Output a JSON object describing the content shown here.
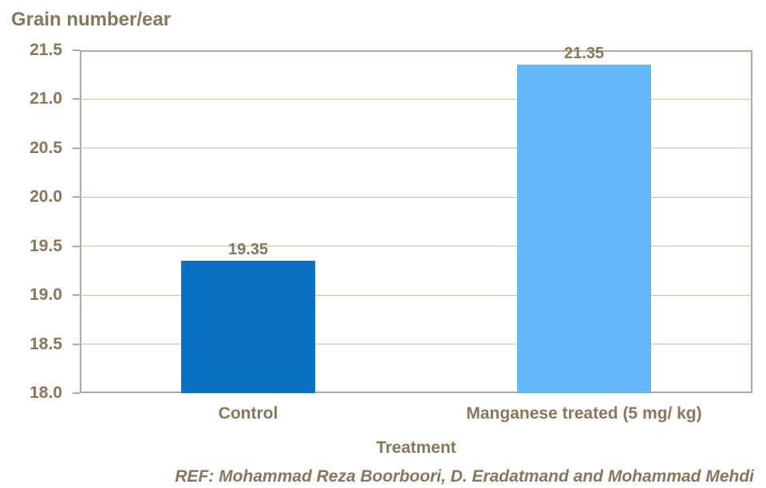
{
  "chart_data": {
    "type": "bar",
    "title": "Grain number/ear",
    "xlabel": "Treatment",
    "ylabel": "Grain number/ear",
    "categories": [
      "Control",
      "Manganese treated (5 mg/ kg)"
    ],
    "values": [
      19.35,
      21.35
    ],
    "data_labels": [
      "19.35",
      "21.35"
    ],
    "bar_colors": [
      "#0a70c1",
      "#63b8fa"
    ],
    "ylim": [
      18.0,
      21.5
    ],
    "ytick_step": 0.5,
    "yticks": [
      "21.5",
      "21.0",
      "20.5",
      "20.0",
      "19.5",
      "19.0",
      "18.5",
      "18.0"
    ],
    "grid": "horizontal",
    "legend": "none"
  },
  "footer": {
    "ref_text": "REF: Mohammad Reza Boorboori, D. Eradatmand and Mohammad Mehdi"
  },
  "colors": {
    "text_brown": "#87765c",
    "gridline": "#c9bfb2",
    "axis_border": "#b4a99c",
    "bar_control": "#0a70c1",
    "bar_manganese": "#63b8fa",
    "background": "#ffffff"
  }
}
